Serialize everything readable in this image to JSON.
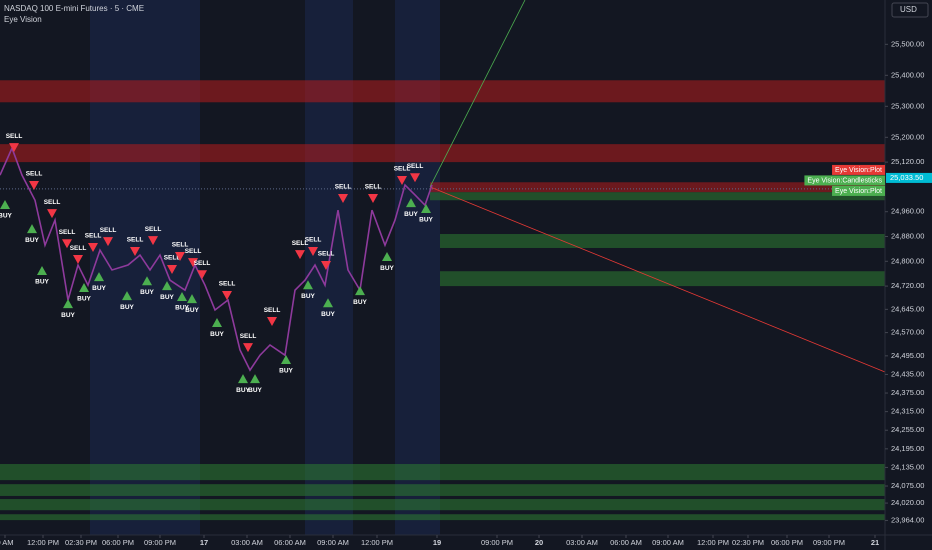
{
  "header": {
    "title": "NASDAQ 100 E-mini Futures · 5 · CME",
    "indicator": "Eye Vision",
    "currency": "USD"
  },
  "chart_data": {
    "type": "signals",
    "ylim": [
      23917,
      25643
    ],
    "yticks": [
      {
        "value": 25500,
        "label": "25,500.00"
      },
      {
        "value": 25400,
        "label": "25,400.00"
      },
      {
        "value": 25300,
        "label": "25,300.00"
      },
      {
        "value": 25200,
        "label": "25,200.00"
      },
      {
        "value": 25120,
        "label": "25,120.00"
      },
      {
        "value": 24960,
        "label": "24,960.00"
      },
      {
        "value": 24880,
        "label": "24,880.00"
      },
      {
        "value": 24800,
        "label": "24,800.00"
      },
      {
        "value": 24720,
        "label": "24,720.00"
      },
      {
        "value": 24645,
        "label": "24,645.00"
      },
      {
        "value": 24570,
        "label": "24,570.00"
      },
      {
        "value": 24495,
        "label": "24,495.00"
      },
      {
        "value": 24435,
        "label": "24,435.00"
      },
      {
        "value": 24375,
        "label": "24,375.00"
      },
      {
        "value": 24315,
        "label": "24,315.00"
      },
      {
        "value": 24255,
        "label": "24,255.00"
      },
      {
        "value": 24195,
        "label": "24,195.00"
      },
      {
        "value": 24135,
        "label": "24,135.00"
      },
      {
        "value": 24075,
        "label": "24,075.00"
      },
      {
        "value": 24020,
        "label": "24,020.00"
      },
      {
        "value": 23964,
        "label": "23,964.00"
      }
    ],
    "xlim": [
      0,
      885
    ],
    "xticks": [
      {
        "value": 5,
        "label": "0 AM"
      },
      {
        "value": 43,
        "label": "12:00 PM"
      },
      {
        "value": 81,
        "label": "02:30 PM"
      },
      {
        "value": 118,
        "label": "06:00 PM"
      },
      {
        "value": 160,
        "label": "09:00 PM"
      },
      {
        "value": 204,
        "label": "17"
      },
      {
        "value": 247,
        "label": "03:00 AM"
      },
      {
        "value": 290,
        "label": "06:00 AM"
      },
      {
        "value": 333,
        "label": "09:00 AM"
      },
      {
        "value": 377,
        "label": "12:00 PM"
      },
      {
        "value": 437,
        "label": "19"
      },
      {
        "value": 497,
        "label": "09:00 PM"
      },
      {
        "value": 539,
        "label": "20"
      },
      {
        "value": 582,
        "label": "03:00 AM"
      },
      {
        "value": 626,
        "label": "06:00 AM"
      },
      {
        "value": 668,
        "label": "09:00 AM"
      },
      {
        "value": 713,
        "label": "12:00 PM"
      },
      {
        "value": 748,
        "label": "02:30 PM"
      },
      {
        "value": 787,
        "label": "06:00 PM"
      },
      {
        "value": 829,
        "label": "09:00 PM"
      },
      {
        "value": 875,
        "label": "21"
      }
    ],
    "price": {
      "color": "#8e3a9c",
      "x": [
        0,
        12,
        22,
        35,
        45,
        55,
        68,
        78,
        88,
        100,
        112,
        128,
        140,
        150,
        160,
        170,
        185,
        195,
        205,
        215,
        228,
        240,
        250,
        260,
        270,
        285,
        295,
        305,
        315,
        325,
        338,
        348,
        360,
        372,
        385,
        395,
        405,
        415,
        425,
        432
      ],
      "y": [
        25078,
        25165,
        25078,
        24997,
        24852,
        24933,
        24675,
        24788,
        24723,
        24836,
        24772,
        24788,
        24820,
        24772,
        24820,
        24739,
        24707,
        24788,
        24723,
        24643,
        24675,
        24514,
        24449,
        24497,
        24530,
        24497,
        24707,
        24739,
        24788,
        24723,
        24965,
        24772,
        24707,
        24965,
        24852,
        24933,
        25046,
        25014,
        24981,
        25046
      ]
    },
    "current_price": {
      "value": 25033.5,
      "label": "25,033.50"
    },
    "zones": [
      {
        "from": 25313,
        "to": 25384,
        "start": 0,
        "color": "#b71c1c"
      },
      {
        "from": 25120,
        "to": 25178,
        "start": 0,
        "color": "#b71c1c"
      },
      {
        "from": 25023,
        "to": 25055,
        "start": 430,
        "color": "#b71c1c"
      },
      {
        "from": 24997,
        "to": 25023,
        "start": 430,
        "color": "#2e7d32"
      },
      {
        "from": 24843,
        "to": 24888,
        "start": 440,
        "color": "#2e7d32"
      },
      {
        "from": 24720,
        "to": 24768,
        "start": 440,
        "color": "#2e7d32"
      },
      {
        "from": 24094,
        "to": 24146,
        "start": 0,
        "color": "#2e7d32"
      },
      {
        "from": 24043,
        "to": 24081,
        "start": 0,
        "color": "#2e7d32"
      },
      {
        "from": 23997,
        "to": 24033,
        "start": 0,
        "color": "#2e7d32"
      },
      {
        "from": 23965,
        "to": 23984,
        "start": 0,
        "color": "#2e7d32"
      }
    ],
    "trendlines": [
      {
        "color": "#4caf50",
        "x": [
          430,
          525
        ],
        "y": [
          25040,
          25643
        ]
      },
      {
        "color": "#e53935",
        "x": [
          430,
          885
        ],
        "y": [
          25040,
          24443
        ]
      }
    ],
    "plot_labels": [
      {
        "text": "Eye Vision:Plot",
        "color": "#e53935"
      },
      {
        "text": "Eye Vision:Candlesticks",
        "color": "#4caf50"
      },
      {
        "text": "Eye Vision:Plot",
        "color": "#4caf50"
      }
    ],
    "signals": [
      {
        "label": "SELL",
        "x": 14,
        "y": 25165
      },
      {
        "label": "SELL",
        "x": 34,
        "y": 25043
      },
      {
        "label": "SELL",
        "x": 52,
        "y": 24952
      },
      {
        "label": "SELL",
        "x": 67,
        "y": 24855
      },
      {
        "label": "SELL",
        "x": 78,
        "y": 24804
      },
      {
        "label": "SELL",
        "x": 93,
        "y": 24843
      },
      {
        "label": "SELL",
        "x": 108,
        "y": 24862
      },
      {
        "label": "SELL",
        "x": 135,
        "y": 24830
      },
      {
        "label": "SELL",
        "x": 153,
        "y": 24865
      },
      {
        "label": "SELL",
        "x": 172,
        "y": 24772
      },
      {
        "label": "SELL",
        "x": 180,
        "y": 24814
      },
      {
        "label": "SELL",
        "x": 193,
        "y": 24794
      },
      {
        "label": "SELL",
        "x": 202,
        "y": 24755
      },
      {
        "label": "SELL",
        "x": 227,
        "y": 24688
      },
      {
        "label": "SELL",
        "x": 248,
        "y": 24520
      },
      {
        "label": "SELL",
        "x": 272,
        "y": 24604
      },
      {
        "label": "SELL",
        "x": 300,
        "y": 24820
      },
      {
        "label": "SELL",
        "x": 313,
        "y": 24830
      },
      {
        "label": "SELL",
        "x": 326,
        "y": 24785
      },
      {
        "label": "SELL",
        "x": 343,
        "y": 25001
      },
      {
        "label": "SELL",
        "x": 373,
        "y": 25001
      },
      {
        "label": "SELL",
        "x": 402,
        "y": 25059
      },
      {
        "label": "SELL",
        "x": 415,
        "y": 25068
      },
      {
        "label": "BUY",
        "x": 5,
        "y": 24985
      },
      {
        "label": "BUY",
        "x": 32,
        "y": 24907
      },
      {
        "label": "BUY",
        "x": 42,
        "y": 24772
      },
      {
        "label": "BUY",
        "x": 68,
        "y": 24665
      },
      {
        "label": "BUY",
        "x": 84,
        "y": 24717
      },
      {
        "label": "BUY",
        "x": 99,
        "y": 24752
      },
      {
        "label": "BUY",
        "x": 127,
        "y": 24691
      },
      {
        "label": "BUY",
        "x": 147,
        "y": 24739
      },
      {
        "label": "BUY",
        "x": 167,
        "y": 24723
      },
      {
        "label": "BUY",
        "x": 182,
        "y": 24688
      },
      {
        "label": "BUY",
        "x": 192,
        "y": 24681
      },
      {
        "label": "BUY",
        "x": 217,
        "y": 24604
      },
      {
        "label": "BUY",
        "x": 243,
        "y": 24423
      },
      {
        "label": "BUY",
        "x": 255,
        "y": 24423
      },
      {
        "label": "BUY",
        "x": 286,
        "y": 24485
      },
      {
        "label": "BUY",
        "x": 308,
        "y": 24726
      },
      {
        "label": "BUY",
        "x": 328,
        "y": 24668
      },
      {
        "label": "BUY",
        "x": 360,
        "y": 24707
      },
      {
        "label": "BUY",
        "x": 387,
        "y": 24817
      },
      {
        "label": "BUY",
        "x": 411,
        "y": 24991
      },
      {
        "label": "BUY",
        "x": 426,
        "y": 24972
      }
    ]
  }
}
